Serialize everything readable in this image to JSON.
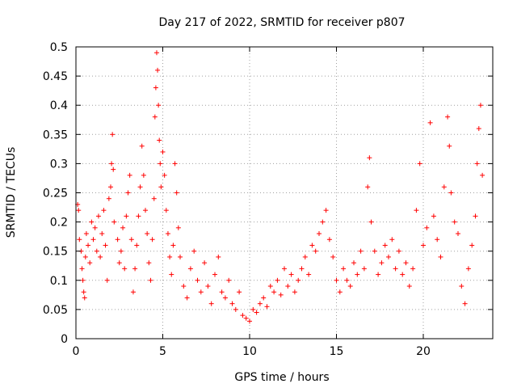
{
  "chart_data": {
    "type": "scatter",
    "title": "Day 217 of 2022, SRMTID for receiver p807",
    "xlabel": "GPS time / hours",
    "ylabel": "SRMTID / TECUs",
    "xlim": [
      0,
      24
    ],
    "ylim": [
      0,
      0.5
    ],
    "x_ticks": [
      0,
      5,
      10,
      15,
      20
    ],
    "x_tick_labels": [
      "0",
      "5",
      "10",
      "15",
      "20"
    ],
    "y_ticks": [
      0,
      0.05,
      0.1,
      0.15,
      0.2,
      0.25,
      0.3,
      0.35,
      0.4,
      0.45,
      0.5
    ],
    "y_tick_labels": [
      "0",
      "0.05",
      "0.1",
      "0.15",
      "0.2",
      "0.25",
      "0.3",
      "0.35",
      "0.4",
      "0.45",
      "0.5"
    ],
    "grid": true,
    "marker": "+",
    "color": "#ff0000",
    "series": [
      {
        "name": "SRMTID",
        "points": [
          [
            0.1,
            0.23
          ],
          [
            0.15,
            0.22
          ],
          [
            0.2,
            0.17
          ],
          [
            0.3,
            0.15
          ],
          [
            0.35,
            0.12
          ],
          [
            0.4,
            0.1
          ],
          [
            0.45,
            0.08
          ],
          [
            0.5,
            0.07
          ],
          [
            0.55,
            0.14
          ],
          [
            0.6,
            0.18
          ],
          [
            0.7,
            0.16
          ],
          [
            0.8,
            0.13
          ],
          [
            0.9,
            0.2
          ],
          [
            1.0,
            0.17
          ],
          [
            1.1,
            0.19
          ],
          [
            1.2,
            0.15
          ],
          [
            1.3,
            0.21
          ],
          [
            1.4,
            0.14
          ],
          [
            1.5,
            0.18
          ],
          [
            1.6,
            0.22
          ],
          [
            1.7,
            0.16
          ],
          [
            1.8,
            0.1
          ],
          [
            1.9,
            0.24
          ],
          [
            2.0,
            0.26
          ],
          [
            2.05,
            0.3
          ],
          [
            2.1,
            0.35
          ],
          [
            2.15,
            0.29
          ],
          [
            2.2,
            0.2
          ],
          [
            2.4,
            0.17
          ],
          [
            2.5,
            0.13
          ],
          [
            2.6,
            0.15
          ],
          [
            2.7,
            0.19
          ],
          [
            2.8,
            0.12
          ],
          [
            2.9,
            0.21
          ],
          [
            3.0,
            0.25
          ],
          [
            3.1,
            0.28
          ],
          [
            3.2,
            0.17
          ],
          [
            3.3,
            0.08
          ],
          [
            3.4,
            0.12
          ],
          [
            3.5,
            0.16
          ],
          [
            3.6,
            0.21
          ],
          [
            3.7,
            0.26
          ],
          [
            3.8,
            0.33
          ],
          [
            3.9,
            0.28
          ],
          [
            4.0,
            0.22
          ],
          [
            4.1,
            0.18
          ],
          [
            4.2,
            0.13
          ],
          [
            4.3,
            0.1
          ],
          [
            4.4,
            0.17
          ],
          [
            4.5,
            0.24
          ],
          [
            4.55,
            0.38
          ],
          [
            4.6,
            0.43
          ],
          [
            4.65,
            0.49
          ],
          [
            4.7,
            0.46
          ],
          [
            4.75,
            0.4
          ],
          [
            4.8,
            0.34
          ],
          [
            4.85,
            0.3
          ],
          [
            4.9,
            0.26
          ],
          [
            5.0,
            0.32
          ],
          [
            5.1,
            0.28
          ],
          [
            5.2,
            0.22
          ],
          [
            5.3,
            0.18
          ],
          [
            5.4,
            0.14
          ],
          [
            5.5,
            0.11
          ],
          [
            5.6,
            0.16
          ],
          [
            5.7,
            0.3
          ],
          [
            5.8,
            0.25
          ],
          [
            5.9,
            0.19
          ],
          [
            6.0,
            0.14
          ],
          [
            6.2,
            0.09
          ],
          [
            6.4,
            0.07
          ],
          [
            6.6,
            0.12
          ],
          [
            6.8,
            0.15
          ],
          [
            7.0,
            0.1
          ],
          [
            7.2,
            0.08
          ],
          [
            7.4,
            0.13
          ],
          [
            7.6,
            0.09
          ],
          [
            7.8,
            0.06
          ],
          [
            8.0,
            0.11
          ],
          [
            8.2,
            0.14
          ],
          [
            8.4,
            0.08
          ],
          [
            8.6,
            0.07
          ],
          [
            8.8,
            0.1
          ],
          [
            9.0,
            0.06
          ],
          [
            9.2,
            0.05
          ],
          [
            9.4,
            0.08
          ],
          [
            9.6,
            0.04
          ],
          [
            9.8,
            0.035
          ],
          [
            10.0,
            0.03
          ],
          [
            10.2,
            0.05
          ],
          [
            10.4,
            0.045
          ],
          [
            10.6,
            0.06
          ],
          [
            10.8,
            0.07
          ],
          [
            11.0,
            0.055
          ],
          [
            11.2,
            0.09
          ],
          [
            11.4,
            0.08
          ],
          [
            11.6,
            0.1
          ],
          [
            11.8,
            0.075
          ],
          [
            12.0,
            0.12
          ],
          [
            12.2,
            0.09
          ],
          [
            12.4,
            0.11
          ],
          [
            12.6,
            0.08
          ],
          [
            12.8,
            0.1
          ],
          [
            13.0,
            0.12
          ],
          [
            13.2,
            0.14
          ],
          [
            13.4,
            0.11
          ],
          [
            13.6,
            0.16
          ],
          [
            13.8,
            0.15
          ],
          [
            14.0,
            0.18
          ],
          [
            14.2,
            0.2
          ],
          [
            14.4,
            0.22
          ],
          [
            14.6,
            0.17
          ],
          [
            14.8,
            0.14
          ],
          [
            15.0,
            0.1
          ],
          [
            15.2,
            0.08
          ],
          [
            15.4,
            0.12
          ],
          [
            15.6,
            0.1
          ],
          [
            15.8,
            0.09
          ],
          [
            16.0,
            0.13
          ],
          [
            16.2,
            0.11
          ],
          [
            16.4,
            0.15
          ],
          [
            16.6,
            0.12
          ],
          [
            16.8,
            0.26
          ],
          [
            16.9,
            0.31
          ],
          [
            17.0,
            0.2
          ],
          [
            17.2,
            0.15
          ],
          [
            17.4,
            0.11
          ],
          [
            17.6,
            0.13
          ],
          [
            17.8,
            0.16
          ],
          [
            18.0,
            0.14
          ],
          [
            18.2,
            0.17
          ],
          [
            18.4,
            0.12
          ],
          [
            18.6,
            0.15
          ],
          [
            18.8,
            0.11
          ],
          [
            19.0,
            0.13
          ],
          [
            19.2,
            0.09
          ],
          [
            19.4,
            0.12
          ],
          [
            19.6,
            0.22
          ],
          [
            19.8,
            0.3
          ],
          [
            20.0,
            0.16
          ],
          [
            20.2,
            0.19
          ],
          [
            20.4,
            0.37
          ],
          [
            20.6,
            0.21
          ],
          [
            20.8,
            0.17
          ],
          [
            21.0,
            0.14
          ],
          [
            21.2,
            0.26
          ],
          [
            21.4,
            0.38
          ],
          [
            21.5,
            0.33
          ],
          [
            21.6,
            0.25
          ],
          [
            21.8,
            0.2
          ],
          [
            22.0,
            0.18
          ],
          [
            22.2,
            0.09
          ],
          [
            22.4,
            0.06
          ],
          [
            22.6,
            0.12
          ],
          [
            22.8,
            0.16
          ],
          [
            23.0,
            0.21
          ],
          [
            23.1,
            0.3
          ],
          [
            23.2,
            0.36
          ],
          [
            23.3,
            0.4
          ],
          [
            23.4,
            0.28
          ]
        ]
      }
    ]
  }
}
